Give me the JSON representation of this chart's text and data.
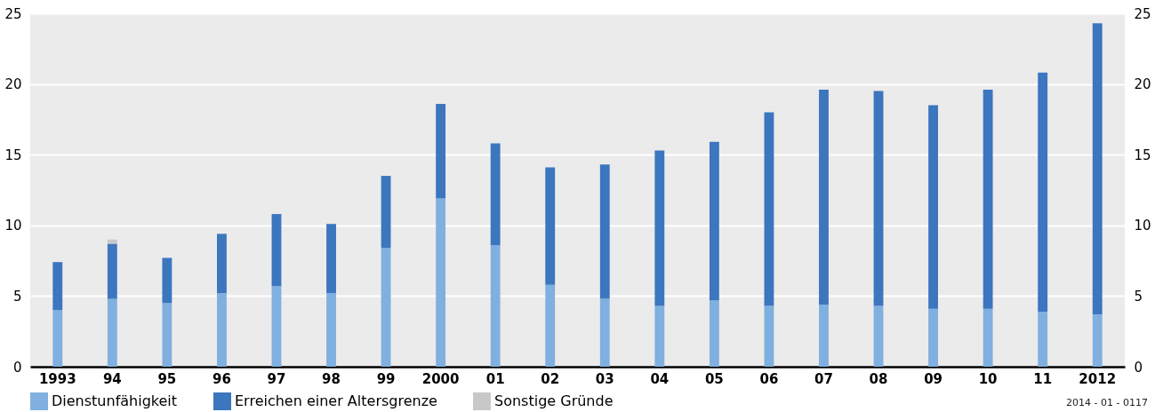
{
  "chart_data": {
    "type": "bar",
    "stacked": true,
    "categories": [
      "1993",
      "94",
      "95",
      "96",
      "97",
      "98",
      "99",
      "2000",
      "01",
      "02",
      "03",
      "04",
      "05",
      "06",
      "07",
      "08",
      "09",
      "10",
      "11",
      "2012"
    ],
    "series": [
      {
        "name": "Dienstunfähigkeit",
        "color": "#7fb0e0",
        "values": [
          4.0,
          4.8,
          4.5,
          5.2,
          5.7,
          5.2,
          8.4,
          11.9,
          8.6,
          5.8,
          4.8,
          4.3,
          4.7,
          4.3,
          4.4,
          4.3,
          4.1,
          4.1,
          3.9,
          3.7
        ]
      },
      {
        "name": "Erreichen einer Altersgrenze",
        "color": "#3b76bf",
        "values": [
          3.4,
          3.9,
          3.2,
          4.2,
          5.1,
          4.9,
          5.1,
          6.7,
          7.2,
          8.3,
          9.5,
          11.0,
          11.2,
          13.7,
          15.2,
          15.2,
          14.4,
          15.5,
          16.9,
          20.6
        ]
      },
      {
        "name": "Sonstige Gründe",
        "color": "#c8c8c8",
        "values": [
          0,
          0.3,
          0,
          0,
          0,
          0,
          0,
          0,
          0,
          0,
          0,
          0,
          0,
          0,
          0,
          0,
          0,
          0,
          0,
          0
        ]
      }
    ],
    "ylim": [
      0,
      25
    ],
    "yticks": [
      0,
      5,
      10,
      15,
      20,
      25
    ],
    "y2lim": [
      0,
      25
    ],
    "y2ticks": [
      0,
      5,
      10,
      15,
      20,
      25
    ],
    "grid": "y",
    "legend": "bottom left",
    "annotations": [
      "2014 - 01 - 0117"
    ]
  }
}
